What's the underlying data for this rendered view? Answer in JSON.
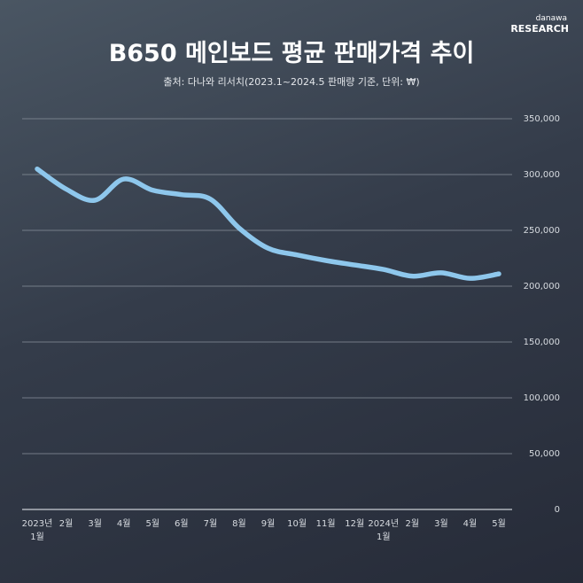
{
  "brand": {
    "top": "danawa",
    "bottom": "RESEARCH"
  },
  "chart_data": {
    "type": "line",
    "title": "B650 메인보드 평균 판매가격 추이",
    "subtitle": "출처: 다나와 리서치(2023.1~2024.5 판매량 기준, 단위: ₩)",
    "categories": [
      "2023년\n1월",
      "2월",
      "3월",
      "4월",
      "5월",
      "6월",
      "7월",
      "8월",
      "9월",
      "10월",
      "11월",
      "12월",
      "2024년\n1월",
      "2월",
      "3월",
      "4월",
      "5월"
    ],
    "series": [
      {
        "color": "#8ec7ec",
        "values": [
          305000,
          287000,
          277000,
          296000,
          286000,
          282000,
          278000,
          252000,
          234000,
          228000,
          223000,
          219000,
          215000,
          209000,
          212000,
          207000,
          211000
        ]
      }
    ],
    "ylim": [
      0,
      350000
    ],
    "yticks": [
      0,
      {
        "value": 50000,
        "label": "50,000"
      },
      {
        "value": 100000,
        "label": "100,000"
      },
      {
        "value": 150000,
        "label": "150,000"
      },
      {
        "value": 200000,
        "label": "200,000"
      },
      {
        "value": 250000,
        "label": "250,000"
      },
      {
        "value": 300000,
        "label": "300,000"
      },
      {
        "value": 350000,
        "label": "350,000"
      }
    ],
    "grid": true
  }
}
